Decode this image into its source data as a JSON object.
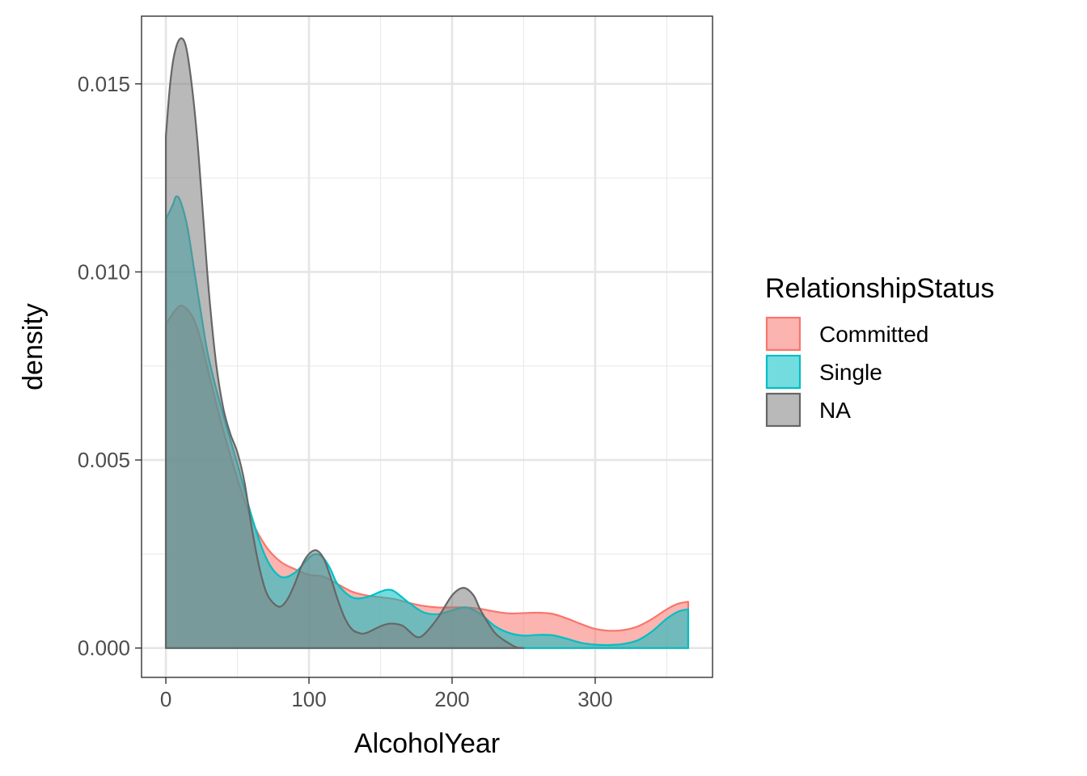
{
  "chart_data": {
    "type": "area",
    "title": "",
    "xlabel": "AlcoholYear",
    "ylabel": "density",
    "xlim": [
      -17,
      382
    ],
    "ylim": [
      -0.00078,
      0.0168
    ],
    "x_ticks": [
      0,
      100,
      200,
      300
    ],
    "x_tick_labels": [
      "0",
      "100",
      "200",
      "300"
    ],
    "x_minor_ticks": [
      50,
      150,
      250,
      350
    ],
    "y_ticks": [
      0.0,
      0.005,
      0.01,
      0.015
    ],
    "y_tick_labels": [
      "0.000",
      "0.005",
      "0.010",
      "0.015"
    ],
    "y_minor_ticks": [
      0.0025,
      0.0075,
      0.0125
    ],
    "grid": true,
    "legend": {
      "title": "RelationshipStatus",
      "position": "right"
    },
    "series": [
      {
        "name": "Committed",
        "fill": "#F8766D",
        "line": "#F8766D",
        "points": [
          [
            0,
            0.0086
          ],
          [
            5,
            0.0089
          ],
          [
            10,
            0.0091
          ],
          [
            15,
            0.009
          ],
          [
            20,
            0.0087
          ],
          [
            25,
            0.0081
          ],
          [
            30,
            0.0073
          ],
          [
            40,
            0.0058
          ],
          [
            50,
            0.0045
          ],
          [
            60,
            0.0034
          ],
          [
            70,
            0.0027
          ],
          [
            80,
            0.0023
          ],
          [
            90,
            0.0021
          ],
          [
            100,
            0.00195
          ],
          [
            110,
            0.0019
          ],
          [
            120,
            0.0017
          ],
          [
            130,
            0.0015
          ],
          [
            140,
            0.0014
          ],
          [
            150,
            0.00135
          ],
          [
            160,
            0.0013
          ],
          [
            170,
            0.0012
          ],
          [
            180,
            0.00112
          ],
          [
            190,
            0.00108
          ],
          [
            200,
            0.00108
          ],
          [
            210,
            0.00108
          ],
          [
            220,
            0.00104
          ],
          [
            230,
            0.00097
          ],
          [
            240,
            0.00092
          ],
          [
            250,
            0.00093
          ],
          [
            260,
            0.00094
          ],
          [
            270,
            0.00091
          ],
          [
            280,
            0.00079
          ],
          [
            290,
            0.00064
          ],
          [
            300,
            0.00051
          ],
          [
            310,
            0.00046
          ],
          [
            320,
            0.00048
          ],
          [
            330,
            0.00058
          ],
          [
            340,
            0.00078
          ],
          [
            350,
            0.00103
          ],
          [
            358,
            0.00118
          ],
          [
            365,
            0.00123
          ]
        ]
      },
      {
        "name": "Single",
        "fill": "#00BFC4",
        "line": "#00BFC4",
        "points": [
          [
            0,
            0.0114
          ],
          [
            5,
            0.0118
          ],
          [
            7,
            0.012
          ],
          [
            10,
            0.0119
          ],
          [
            15,
            0.0112
          ],
          [
            20,
            0.01
          ],
          [
            25,
            0.0088
          ],
          [
            30,
            0.0077
          ],
          [
            40,
            0.0062
          ],
          [
            50,
            0.0049
          ],
          [
            60,
            0.0035
          ],
          [
            70,
            0.0024
          ],
          [
            80,
            0.0019
          ],
          [
            90,
            0.002
          ],
          [
            100,
            0.0024
          ],
          [
            105,
            0.0025
          ],
          [
            110,
            0.0024
          ],
          [
            115,
            0.0021
          ],
          [
            120,
            0.0017
          ],
          [
            130,
            0.00135
          ],
          [
            140,
            0.00135
          ],
          [
            150,
            0.0015
          ],
          [
            155,
            0.00155
          ],
          [
            160,
            0.0015
          ],
          [
            170,
            0.0012
          ],
          [
            180,
            0.00095
          ],
          [
            190,
            0.0009
          ],
          [
            200,
            0.001
          ],
          [
            210,
            0.00108
          ],
          [
            220,
            0.0009
          ],
          [
            230,
            0.00058
          ],
          [
            240,
            0.0004
          ],
          [
            250,
            0.00033
          ],
          [
            260,
            0.00035
          ],
          [
            270,
            0.00034
          ],
          [
            280,
            0.00025
          ],
          [
            290,
            0.00014
          ],
          [
            300,
            9e-05
          ],
          [
            310,
            8e-05
          ],
          [
            320,
            0.00011
          ],
          [
            330,
            0.00021
          ],
          [
            340,
            0.00045
          ],
          [
            350,
            0.00078
          ],
          [
            358,
            0.00097
          ],
          [
            365,
            0.00103
          ]
        ]
      },
      {
        "name": "NA",
        "fill": "#7F7F7F",
        "line": "#666666",
        "points": [
          [
            0,
            0.0136
          ],
          [
            3,
            0.015
          ],
          [
            6,
            0.0158
          ],
          [
            10,
            0.0162
          ],
          [
            14,
            0.016
          ],
          [
            18,
            0.015
          ],
          [
            22,
            0.0135
          ],
          [
            26,
            0.0115
          ],
          [
            30,
            0.0095
          ],
          [
            35,
            0.0076
          ],
          [
            40,
            0.0064
          ],
          [
            45,
            0.0057
          ],
          [
            50,
            0.0052
          ],
          [
            55,
            0.0044
          ],
          [
            60,
            0.0032
          ],
          [
            65,
            0.0022
          ],
          [
            70,
            0.0015
          ],
          [
            75,
            0.0012
          ],
          [
            80,
            0.0011
          ],
          [
            85,
            0.0013
          ],
          [
            90,
            0.0017
          ],
          [
            95,
            0.0022
          ],
          [
            100,
            0.0025
          ],
          [
            105,
            0.0026
          ],
          [
            110,
            0.0024
          ],
          [
            115,
            0.0019
          ],
          [
            120,
            0.0013
          ],
          [
            125,
            0.0008
          ],
          [
            130,
            0.0005
          ],
          [
            135,
            0.0004
          ],
          [
            140,
            0.0004
          ],
          [
            150,
            0.00058
          ],
          [
            157,
            0.00065
          ],
          [
            165,
            0.0006
          ],
          [
            170,
            0.00045
          ],
          [
            175,
            0.0003
          ],
          [
            180,
            0.00035
          ],
          [
            190,
            0.0008
          ],
          [
            200,
            0.0014
          ],
          [
            208,
            0.0016
          ],
          [
            215,
            0.0014
          ],
          [
            220,
            0.001
          ],
          [
            230,
            0.0004
          ],
          [
            240,
            0.00012
          ],
          [
            245,
            2e-05
          ],
          [
            250,
            0
          ]
        ]
      }
    ]
  }
}
